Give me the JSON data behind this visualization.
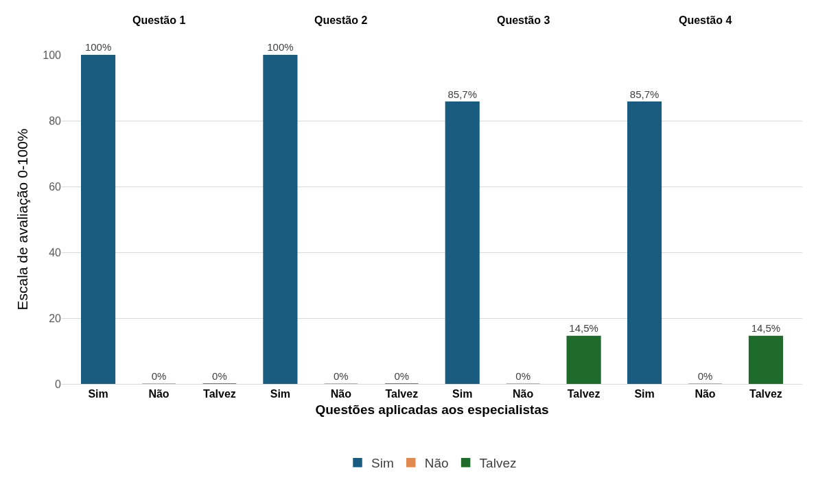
{
  "chart_data": {
    "type": "bar",
    "xlabel": "Questões aplicadas aos especialistas",
    "ylabel": "Escala de avaliação 0-100%",
    "categories": [
      "Sim",
      "Não",
      "Talvez",
      "Sim",
      "Não",
      "Talvez",
      "Sim",
      "Não",
      "Talvez",
      "Sim",
      "Não",
      "Talvez"
    ],
    "series": [
      {
        "name": "Sim",
        "color": "#1a5c80",
        "values": [
          100,
          null,
          null,
          100,
          null,
          null,
          85.7,
          null,
          null,
          85.7,
          null,
          null
        ],
        "value_labels": [
          "100%",
          null,
          null,
          "100%",
          null,
          null,
          "85,7%",
          null,
          null,
          "85,7%",
          null,
          null
        ]
      },
      {
        "name": "Não",
        "color": "#e08a4f",
        "values": [
          null,
          0,
          null,
          null,
          0,
          null,
          null,
          0,
          null,
          null,
          0,
          null
        ],
        "value_labels": [
          null,
          "0%",
          null,
          null,
          "0%",
          null,
          null,
          "0%",
          null,
          null,
          "0%",
          null
        ]
      },
      {
        "name": "Talvez",
        "color": "#1e6b2c",
        "values": [
          null,
          null,
          0,
          null,
          null,
          0,
          null,
          null,
          14.5,
          null,
          null,
          14.5
        ],
        "value_labels": [
          null,
          null,
          "0%",
          null,
          null,
          "0%",
          null,
          null,
          "14,5%",
          null,
          null,
          "14,5%"
        ]
      }
    ],
    "annotations": [
      "Questão 1",
      "Questão 2",
      "Questão 3",
      "Questão 4"
    ],
    "ylim": [
      0,
      100
    ],
    "yticks": [
      0,
      20,
      40,
      60,
      80,
      100
    ],
    "grid": "y",
    "legend": "bottom"
  }
}
